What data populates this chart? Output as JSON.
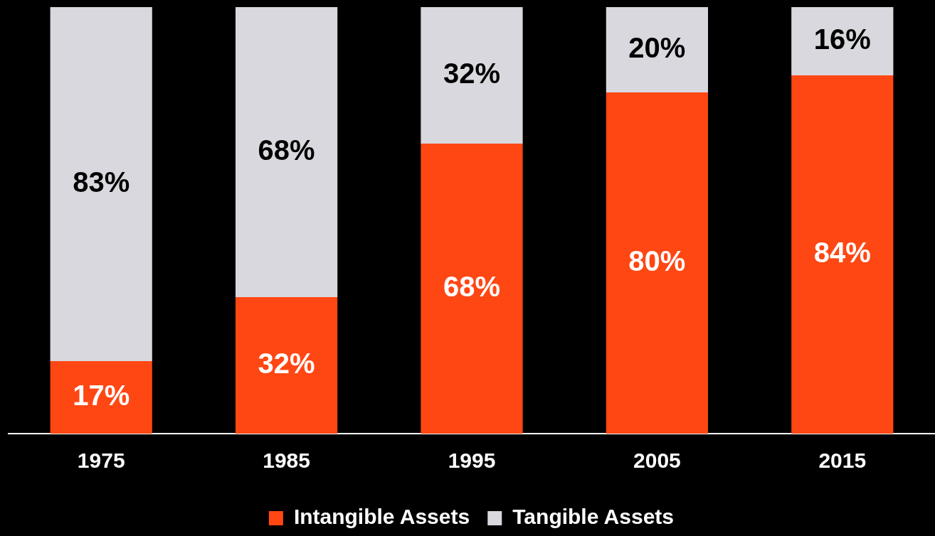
{
  "chart_data": {
    "type": "bar",
    "stacked": true,
    "categories": [
      "1975",
      "1985",
      "1995",
      "2005",
      "2015"
    ],
    "series": [
      {
        "name": "Intangible Assets",
        "color": "#ff4713",
        "values": [
          17,
          32,
          68,
          80,
          84
        ],
        "value_labels": [
          "17%",
          "32%",
          "68%",
          "80%",
          "84%"
        ]
      },
      {
        "name": "Tangible Assets",
        "color": "#d9d8de",
        "values": [
          83,
          68,
          32,
          20,
          16
        ],
        "value_labels": [
          "83%",
          "68%",
          "32%",
          "20%",
          "16%"
        ]
      }
    ],
    "legend": "bottom",
    "grid": false,
    "tick_labels": "x"
  }
}
